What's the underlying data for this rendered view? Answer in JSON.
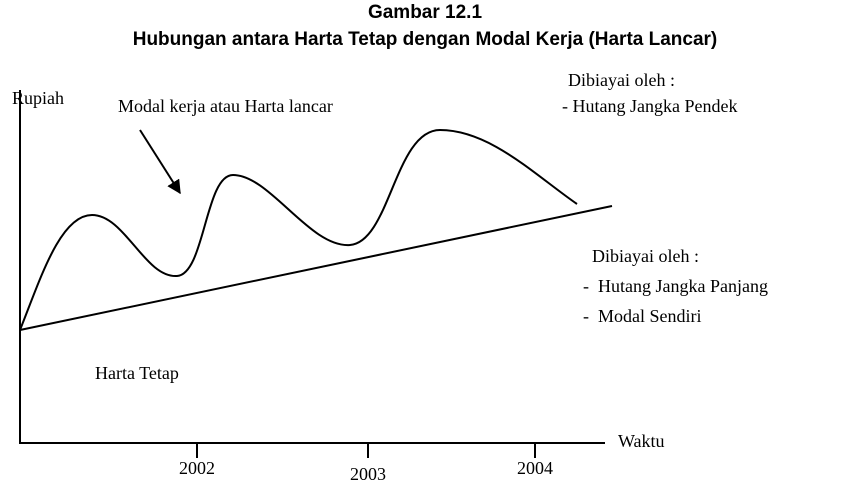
{
  "title": "Gambar 12.1",
  "subtitle": "Hubungan antara Harta Tetap dengan Modal Kerja (Harta Lancar)",
  "y_label": "Rupiah",
  "x_label": "Waktu",
  "curve_label": "Modal kerja atau Harta lancar",
  "fixed_label": "Harta Tetap",
  "upper_note": {
    "heading": "Dibiayai oleh :",
    "items": [
      "- Hutang Jangka Pendek"
    ]
  },
  "lower_note": {
    "heading": "Dibiayai oleh :",
    "items": [
      "-  Hutang Jangka Panjang",
      "-  Modal Sendiri"
    ]
  },
  "x_labels": [
    "2002",
    "2003",
    "2004"
  ]
}
